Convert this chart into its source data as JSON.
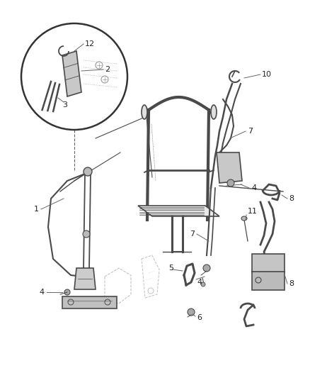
{
  "bg_color": "#f5f5f5",
  "line_color": "#4a4a4a",
  "label_color": "#333333",
  "fig_width": 4.38,
  "fig_height": 5.33,
  "dpi": 100
}
